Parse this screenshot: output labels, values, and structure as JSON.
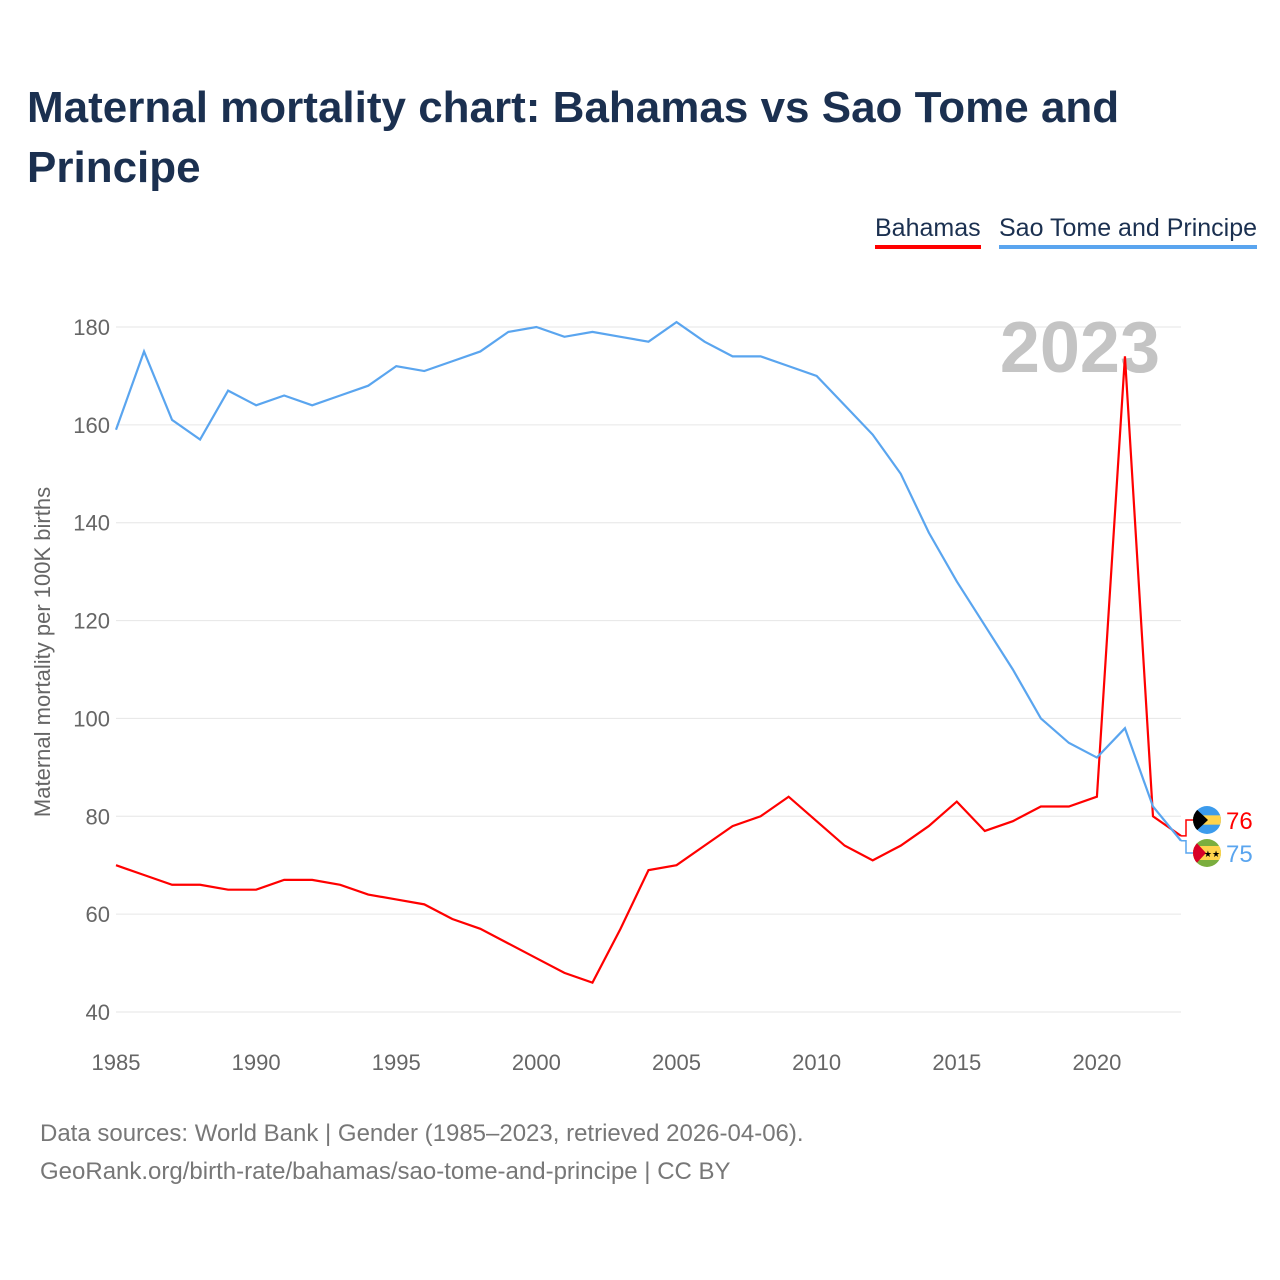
{
  "title": "Maternal mortality chart: Bahamas vs Sao Tome and Principe",
  "year_watermark": "2023",
  "footer": {
    "line1": "Data sources: World Bank | Gender (1985–2023, retrieved 2026-04-06).",
    "line2": "GeoRank.org/birth-rate/bahamas/sao-tome-and-principe | CC BY"
  },
  "chart_data": {
    "type": "line",
    "title": "Maternal mortality chart: Bahamas vs Sao Tome and Principe",
    "xlabel": "",
    "ylabel": "Maternal mortality per 100K births",
    "xlim": [
      1985,
      2023
    ],
    "ylim": [
      40,
      180
    ],
    "xticks": [
      1985,
      1990,
      1995,
      2000,
      2005,
      2010,
      2015,
      2020
    ],
    "yticks": [
      40,
      60,
      80,
      100,
      120,
      140,
      160,
      180
    ],
    "legend": "top-right",
    "grid": true,
    "x": [
      1985,
      1986,
      1987,
      1988,
      1989,
      1990,
      1991,
      1992,
      1993,
      1994,
      1995,
      1996,
      1997,
      1998,
      1999,
      2000,
      2001,
      2002,
      2003,
      2004,
      2005,
      2006,
      2007,
      2008,
      2009,
      2010,
      2011,
      2012,
      2013,
      2014,
      2015,
      2016,
      2017,
      2018,
      2019,
      2020,
      2021,
      2022,
      2023
    ],
    "series": [
      {
        "name": "Bahamas",
        "color": "#ff0000",
        "end_label": "76",
        "flag": "bahamas-flag",
        "values": [
          70,
          68,
          66,
          66,
          65,
          65,
          67,
          67,
          66,
          64,
          63,
          62,
          59,
          57,
          54,
          51,
          48,
          46,
          57,
          69,
          70,
          74,
          78,
          80,
          84,
          79,
          74,
          71,
          74,
          78,
          83,
          77,
          79,
          82,
          82,
          84,
          174,
          80,
          76
        ]
      },
      {
        "name": "Sao Tome and Principe",
        "color": "#5aa5ef",
        "end_label": "75",
        "flag": "sao-tome-flag",
        "values": [
          159,
          175,
          161,
          157,
          167,
          164,
          166,
          164,
          166,
          168,
          172,
          171,
          173,
          175,
          179,
          180,
          178,
          179,
          178,
          177,
          181,
          177,
          174,
          174,
          172,
          170,
          164,
          158,
          150,
          138,
          128,
          119,
          110,
          100,
          95,
          92,
          98,
          82,
          75
        ]
      }
    ]
  }
}
